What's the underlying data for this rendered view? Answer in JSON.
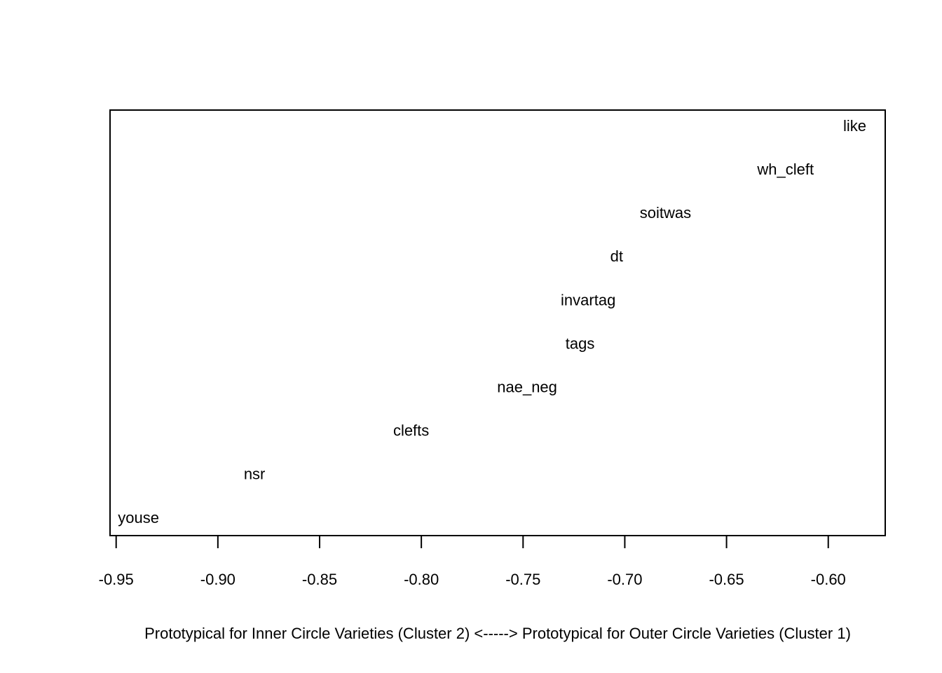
{
  "chart_data": {
    "type": "scatter",
    "title": "",
    "xlabel": "Prototypical for Inner Circle Varieties (Cluster 2) <-----> Prototypical for Outer Circle Varieties (Cluster 1)",
    "ylabel": "",
    "xlim": [
      -0.953,
      -0.572
    ],
    "x_ticks": [
      -0.95,
      -0.9,
      -0.85,
      -0.8,
      -0.75,
      -0.7,
      -0.65,
      -0.6
    ],
    "x_tick_labels": [
      "-0.95",
      "-0.90",
      "-0.85",
      "-0.80",
      "-0.75",
      "-0.70",
      "-0.65",
      "-0.60"
    ],
    "grid": false,
    "legend": "none",
    "points": [
      {
        "label": "like",
        "x": -0.587,
        "rank": 10
      },
      {
        "label": "wh_cleft",
        "x": -0.621,
        "rank": 9
      },
      {
        "label": "soitwas",
        "x": -0.68,
        "rank": 8
      },
      {
        "label": "dt",
        "x": -0.704,
        "rank": 7
      },
      {
        "label": "invartag",
        "x": -0.718,
        "rank": 6
      },
      {
        "label": "tags",
        "x": -0.722,
        "rank": 5
      },
      {
        "label": "nae_neg",
        "x": -0.748,
        "rank": 4
      },
      {
        "label": "clefts",
        "x": -0.805,
        "rank": 3
      },
      {
        "label": "nsr",
        "x": -0.882,
        "rank": 2
      },
      {
        "label": "youse",
        "x": -0.939,
        "rank": 1
      }
    ]
  }
}
